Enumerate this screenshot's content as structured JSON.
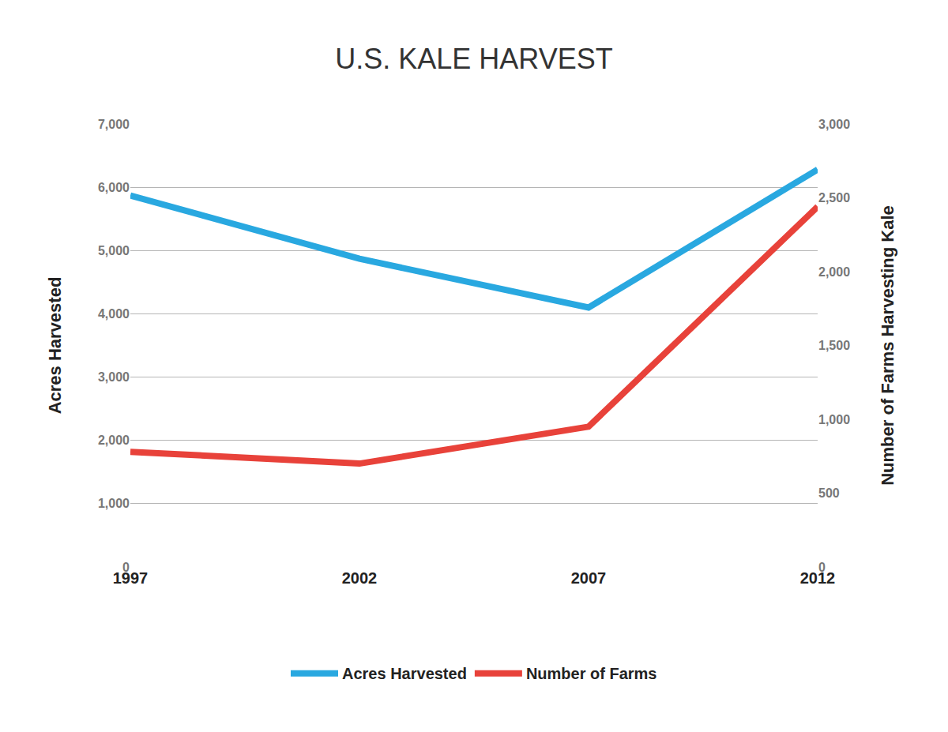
{
  "chart_data": {
    "type": "line",
    "title": "U.S. KALE HARVEST",
    "y_label": "Acres Harvested",
    "y2_label": "Number of Farms Harvesting Kale",
    "categories": [
      "1997",
      "2002",
      "2007",
      "2012"
    ],
    "series": [
      {
        "name": "Acres Harvested",
        "color": "#29a8e0",
        "values": [
          5870,
          4870,
          4100,
          6280
        ]
      },
      {
        "name": "Number of Farms",
        "color": "#e8423a",
        "values": [
          780,
          700,
          950,
          2440
        ],
        "axis": "y2"
      }
    ],
    "ylim": [
      0,
      7000
    ],
    "yticks": [
      0,
      {
        "value": 1000,
        "label": "1,000"
      },
      {
        "value": 2000,
        "label": "2,000"
      },
      {
        "value": 3000,
        "label": "3,000"
      },
      {
        "value": 4000,
        "label": "4,000"
      },
      {
        "value": 5000,
        "label": "5,000"
      },
      {
        "value": 6000,
        "label": "6,000"
      },
      {
        "value": 7000,
        "label": "7,000"
      }
    ],
    "y2lim": [
      0,
      3000
    ],
    "y2ticks": [
      0,
      500,
      {
        "value": 1000,
        "label": "1,000"
      },
      {
        "value": 1500,
        "label": "1,500"
      },
      {
        "value": 2000,
        "label": "2,000"
      },
      {
        "value": 2500,
        "label": "2,500"
      },
      {
        "value": 3000,
        "label": "3,000"
      }
    ],
    "grid": true,
    "legend": "bottom"
  }
}
